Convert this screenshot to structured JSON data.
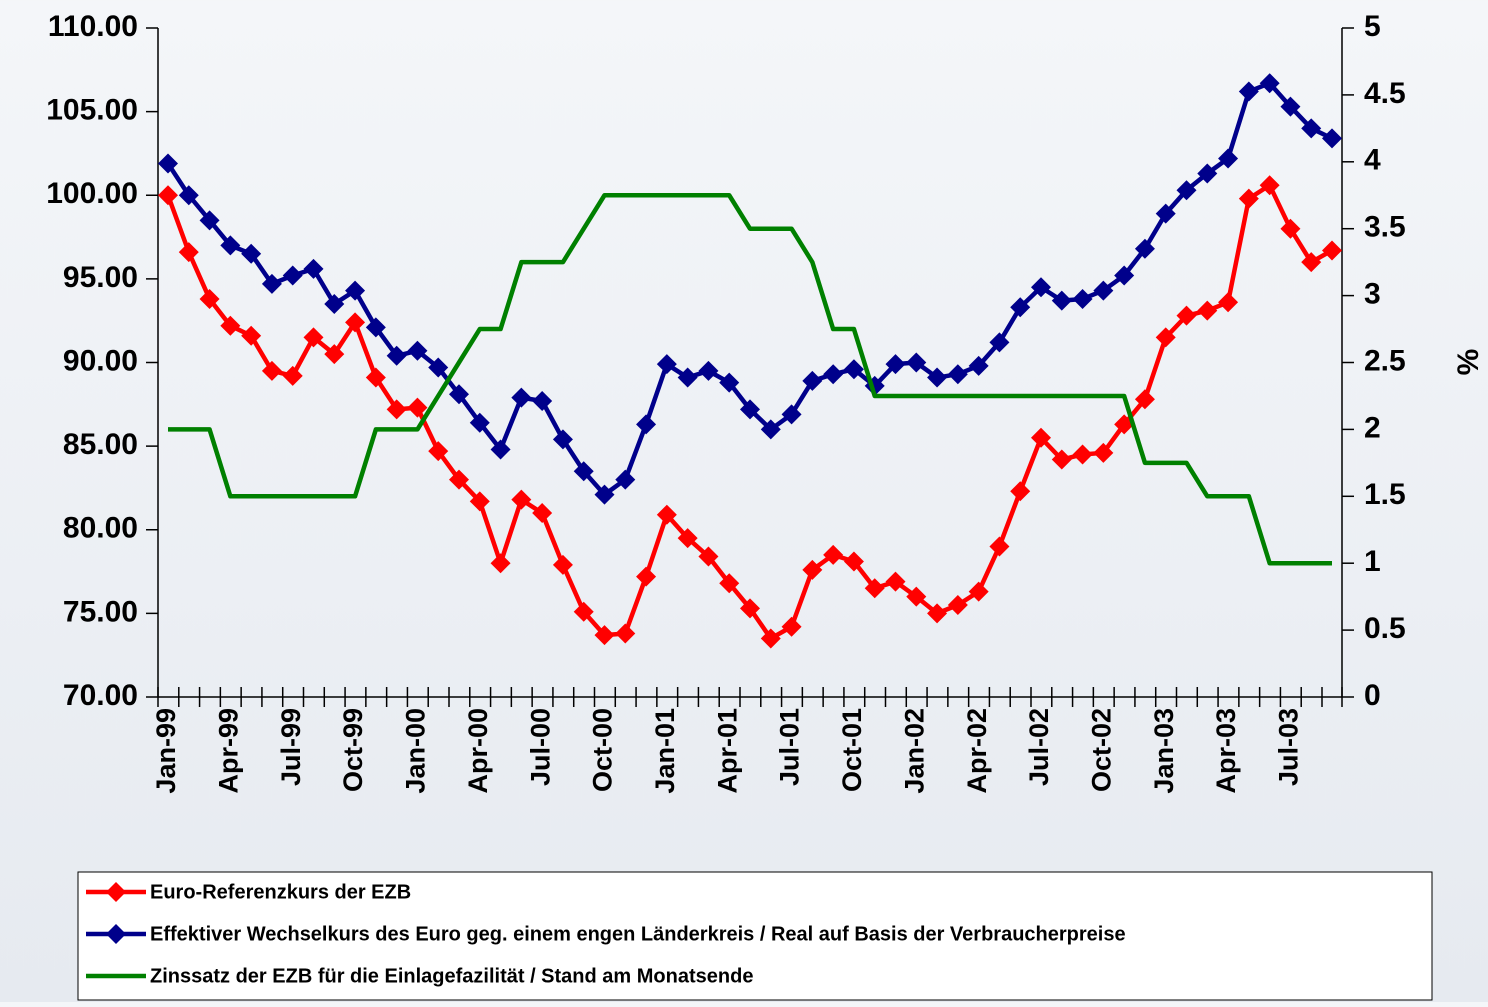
{
  "chart_data": {
    "type": "line",
    "categories": [
      "Jan-99",
      null,
      null,
      "Apr-99",
      null,
      null,
      "Jul-99",
      null,
      null,
      "Oct-99",
      null,
      null,
      "Jan-00",
      null,
      null,
      "Apr-00",
      null,
      null,
      "Jul-00",
      null,
      null,
      "Oct-00",
      null,
      null,
      "Jan-01",
      null,
      null,
      "Apr-01",
      null,
      null,
      "Jul-01",
      null,
      null,
      "Oct-01",
      null,
      null,
      "Jan-02",
      null,
      null,
      "Apr-02",
      null,
      null,
      "Jul-02",
      null,
      null,
      "Oct-02",
      null,
      null,
      "Jan-03",
      null,
      null,
      "Apr-03",
      null,
      null,
      "Jul-03",
      null,
      null
    ],
    "series": [
      {
        "name": "Euro-Referenzkurs der EZB",
        "color": "#ff0000",
        "marker": "diamond",
        "values": [
          100.0,
          96.6,
          93.8,
          92.2,
          91.6,
          89.5,
          89.2,
          91.5,
          90.5,
          92.4,
          89.1,
          87.2,
          87.3,
          84.7,
          83.0,
          81.7,
          78.0,
          81.8,
          81.0,
          77.9,
          75.1,
          73.7,
          73.8,
          77.2,
          80.9,
          79.5,
          78.4,
          76.8,
          75.3,
          73.5,
          74.2,
          77.6,
          78.5,
          78.1,
          76.5,
          76.9,
          76.0,
          75.0,
          75.5,
          76.3,
          79.0,
          82.3,
          85.5,
          84.2,
          84.5,
          84.6,
          86.3,
          87.8,
          91.5,
          92.8,
          93.1,
          93.6,
          99.8,
          100.6,
          98.0,
          96.0,
          96.7
        ]
      },
      {
        "name": "Effektiver Wechselkurs des Euro geg. einem engen Länderkreis / Real auf Basis der Verbraucherpreise",
        "color": "#00008b",
        "marker": "diamond",
        "values": [
          101.9,
          100.0,
          98.5,
          97.0,
          96.5,
          94.7,
          95.2,
          95.6,
          93.5,
          94.3,
          92.1,
          90.4,
          90.7,
          89.7,
          88.1,
          86.4,
          84.8,
          87.9,
          87.7,
          85.4,
          83.5,
          82.1,
          83.0,
          86.3,
          89.9,
          89.1,
          89.5,
          88.8,
          87.2,
          86.0,
          86.9,
          88.9,
          89.3,
          89.6,
          88.6,
          89.9,
          90.0,
          89.1,
          89.3,
          89.8,
          91.2,
          93.3,
          94.5,
          93.7,
          93.8,
          94.3,
          95.2,
          96.8,
          98.9,
          100.3,
          101.3,
          102.2,
          106.2,
          106.7,
          105.3,
          104.0,
          103.4
        ]
      },
      {
        "name": "Zinssatz der EZB für die Einlagefazilität / Stand am Monatsende",
        "color": "#008000",
        "axis": "y2",
        "values": [
          2,
          2,
          2,
          1.5,
          1.5,
          1.5,
          1.5,
          1.5,
          1.5,
          1.5,
          2,
          2,
          2,
          2.25,
          2.5,
          2.75,
          2.75,
          3.25,
          3.25,
          3.25,
          3.5,
          3.75,
          3.75,
          3.75,
          3.75,
          3.75,
          3.75,
          3.75,
          3.5,
          3.5,
          3.5,
          3.25,
          2.75,
          2.75,
          2.25,
          2.25,
          2.25,
          2.25,
          2.25,
          2.25,
          2.25,
          2.25,
          2.25,
          2.25,
          2.25,
          2.25,
          2.25,
          1.75,
          1.75,
          1.75,
          1.5,
          1.5,
          1.5,
          1,
          1,
          1,
          1
        ]
      }
    ],
    "ylim": [
      70,
      110
    ],
    "yticks": [
      {
        "value": 70,
        "label": "70.00"
      },
      {
        "value": 75,
        "label": "75.00"
      },
      {
        "value": 80,
        "label": "80.00"
      },
      {
        "value": 85,
        "label": "85.00"
      },
      {
        "value": 90,
        "label": "90.00"
      },
      {
        "value": 95,
        "label": "95.00"
      },
      {
        "value": 100,
        "label": "100.00"
      },
      {
        "value": 105,
        "label": "105.00"
      },
      {
        "value": 110,
        "label": "110.00"
      }
    ],
    "y2lim": [
      0,
      5
    ],
    "y2ticks": [
      0,
      0.5,
      1,
      1.5,
      2,
      2.5,
      3,
      3.5,
      4,
      4.5,
      5
    ],
    "y2label": "%"
  }
}
